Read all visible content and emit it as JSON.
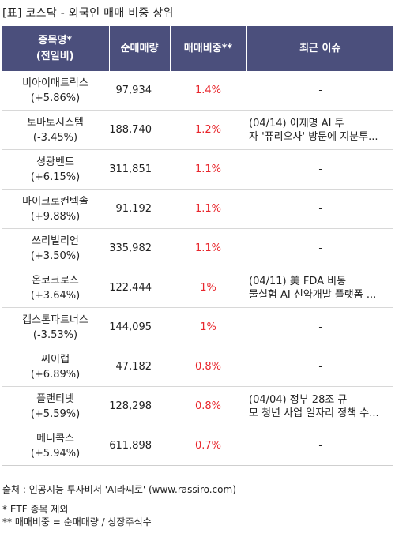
{
  "title": "[표] 코스닥 - 외국인 매매 비중 상위",
  "headers": {
    "name_line1": "종목명*",
    "name_line2": "(전일비)",
    "volume": "순매매량",
    "ratio": "매매비중**",
    "issue": "최근 이슈"
  },
  "rows": [
    {
      "name": "비아이매트릭스",
      "change": "(+5.86%)",
      "volume": "97,934",
      "ratio": "1.4%",
      "issue_line1": "-",
      "issue_line2": ""
    },
    {
      "name": "토마토시스템",
      "change": "(-3.45%)",
      "volume": "188,740",
      "ratio": "1.2%",
      "issue_line1": "(04/14) 이재명 AI 투",
      "issue_line2": "자 '퓨리오사' 방문에 지분투..."
    },
    {
      "name": "성광벤드",
      "change": "(+6.15%)",
      "volume": "311,851",
      "ratio": "1.1%",
      "issue_line1": "-",
      "issue_line2": ""
    },
    {
      "name": "마이크로컨텍솔",
      "change": "(+9.88%)",
      "volume": "91,192",
      "ratio": "1.1%",
      "issue_line1": "-",
      "issue_line2": ""
    },
    {
      "name": "쓰리빌리언",
      "change": "(+3.50%)",
      "volume": "335,982",
      "ratio": "1.1%",
      "issue_line1": "-",
      "issue_line2": ""
    },
    {
      "name": "온코크로스",
      "change": "(+3.64%)",
      "volume": "122,444",
      "ratio": "1%",
      "issue_line1": "(04/11) 美 FDA 비동",
      "issue_line2": "물실험 AI 신약개발 플랫폼 ..."
    },
    {
      "name": "캡스톤파트너스",
      "change": "(-3.53%)",
      "volume": "144,095",
      "ratio": "1%",
      "issue_line1": "-",
      "issue_line2": ""
    },
    {
      "name": "씨이랩",
      "change": "(+6.89%)",
      "volume": "47,182",
      "ratio": "0.8%",
      "issue_line1": "-",
      "issue_line2": ""
    },
    {
      "name": "플랜티넷",
      "change": "(+5.59%)",
      "volume": "128,298",
      "ratio": "0.8%",
      "issue_line1": "(04/04) 정부 28조 규",
      "issue_line2": "모 청년 사업 일자리 정책 수..."
    },
    {
      "name": "메디콕스",
      "change": "(+5.94%)",
      "volume": "611,898",
      "ratio": "0.7%",
      "issue_line1": "-",
      "issue_line2": ""
    }
  ],
  "footer": {
    "source": "출처 : 인공지능 투자비서 'AI라씨로' (www.rassiro.com)",
    "note1": "* ETF 종목 제외",
    "note2": "** 매매비중 = 순매매량 / 상장주식수"
  },
  "colors": {
    "header_bg": "#4b4f7c",
    "ratio_text": "#e8262c"
  }
}
